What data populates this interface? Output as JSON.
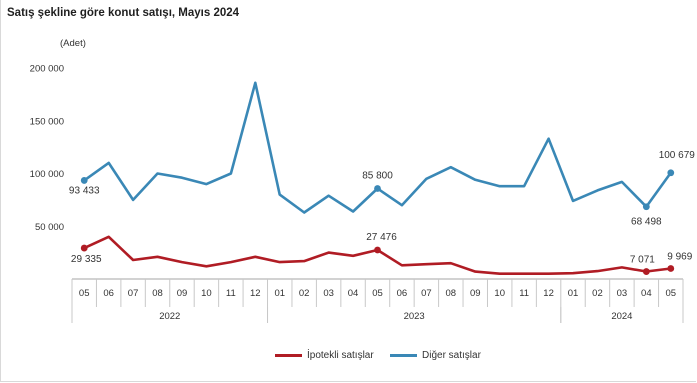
{
  "title": "Satış şekline göre konut satışı, Mayıs 2024",
  "chart_data": {
    "type": "line",
    "title": "Satış şekline göre konut satışı, Mayıs 2024",
    "ylabel": "(Adet)",
    "ylim": [
      0,
      200000
    ],
    "yticks": [
      "200 000",
      "150 000",
      "100 000",
      "50 000"
    ],
    "ytick_values": [
      200000,
      150000,
      100000,
      50000
    ],
    "categories": [
      "05",
      "06",
      "07",
      "08",
      "09",
      "10",
      "11",
      "12",
      "01",
      "02",
      "03",
      "04",
      "05",
      "06",
      "07",
      "08",
      "09",
      "10",
      "11",
      "12",
      "01",
      "02",
      "03",
      "04",
      "05"
    ],
    "year_groups": [
      {
        "label": "2022",
        "start": 0,
        "end": 7
      },
      {
        "label": "2023",
        "start": 8,
        "end": 19
      },
      {
        "label": "2024",
        "start": 20,
        "end": 24
      }
    ],
    "grid": false,
    "legend_position": "bottom",
    "series": [
      {
        "name": "İpotekli satışlar",
        "color": "#b01c24",
        "values": [
          29335,
          40000,
          18000,
          21000,
          16000,
          12000,
          16000,
          21000,
          16000,
          17000,
          25000,
          22000,
          27476,
          13000,
          14000,
          15000,
          7000,
          5000,
          5000,
          5000,
          5500,
          7500,
          11000,
          7071,
          9969
        ],
        "labels": [
          {
            "index": 0,
            "text": "29 335"
          },
          {
            "index": 12,
            "text": "27 476"
          },
          {
            "index": 23,
            "text": "7 071"
          },
          {
            "index": 24,
            "text": "9 969"
          }
        ]
      },
      {
        "name": "Diğer satışlar",
        "color": "#3a88b6",
        "values": [
          93433,
          110000,
          75000,
          100000,
          96000,
          90000,
          100000,
          186000,
          80000,
          63000,
          79000,
          64000,
          85800,
          70000,
          95000,
          106000,
          94000,
          88000,
          88000,
          133000,
          74000,
          84000,
          92000,
          68498,
          100679
        ],
        "labels": [
          {
            "index": 0,
            "text": "93 433"
          },
          {
            "index": 12,
            "text": "85 800"
          },
          {
            "index": 23,
            "text": "68 498"
          },
          {
            "index": 24,
            "text": "100 679"
          }
        ]
      }
    ]
  }
}
